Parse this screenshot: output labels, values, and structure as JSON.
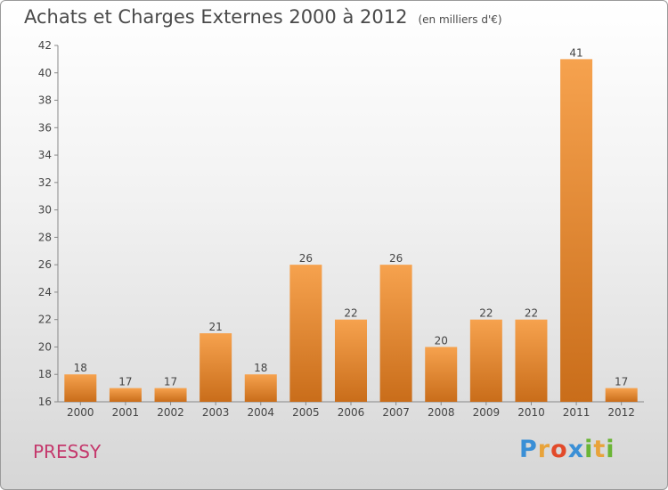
{
  "chart_data": {
    "type": "bar",
    "title": "Achats et Charges Externes 2000 à 2012",
    "unit": "(en milliers d'€)",
    "categories": [
      "2000",
      "2001",
      "2002",
      "2003",
      "2004",
      "2005",
      "2006",
      "2007",
      "2008",
      "2009",
      "2010",
      "2011",
      "2012"
    ],
    "values": [
      18,
      17,
      17,
      21,
      18,
      26,
      22,
      26,
      20,
      22,
      22,
      41,
      17
    ],
    "ylim": [
      16,
      42
    ],
    "yticks": [
      16,
      18,
      20,
      22,
      24,
      26,
      28,
      30,
      32,
      34,
      36,
      38,
      40,
      42
    ],
    "grid": false,
    "bar_color": "#f08a2c"
  },
  "town": "PRESSY",
  "logo": {
    "text": "Proxiti",
    "colors": [
      "#3a8fd6",
      "#e8a33a",
      "#e24a2a",
      "#3a8fd6",
      "#6bb536",
      "#e8a33a",
      "#6bb536"
    ]
  }
}
